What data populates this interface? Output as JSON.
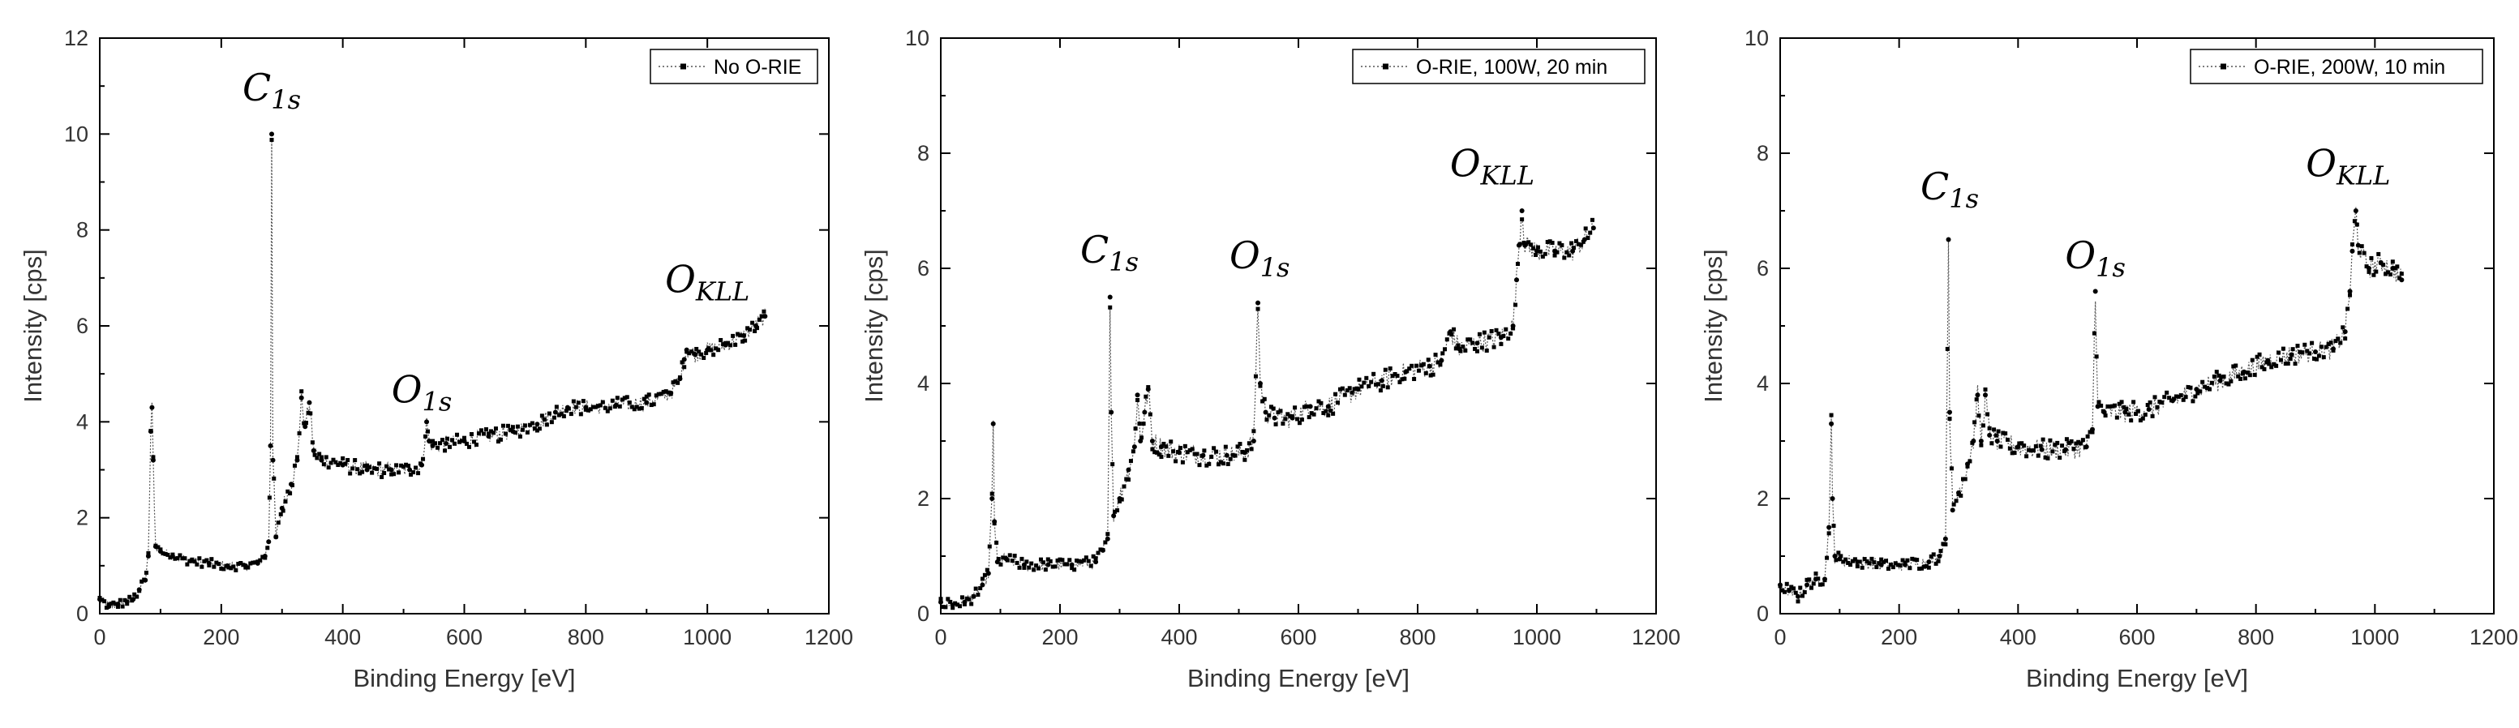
{
  "figure": {
    "description_panels": 3
  },
  "chart_data": [
    {
      "type": "scatter",
      "title": "",
      "xlabel": "Binding Energy [eV]",
      "ylabel": "Intensity [cps]",
      "xlim": [
        0,
        1200
      ],
      "ylim": [
        0,
        12
      ],
      "xticks": [
        0,
        200,
        400,
        600,
        800,
        1000,
        1200
      ],
      "yticks": [
        0,
        2,
        4,
        6,
        8,
        10,
        12
      ],
      "xtick_labels": [
        "0",
        "200",
        "400",
        "600",
        "800",
        "1000",
        "1200"
      ],
      "ytick_labels": [
        "0",
        "2",
        "4",
        "6",
        "8",
        "10",
        "12"
      ],
      "legend": "No O-RIE",
      "legend_position": "top-right",
      "x_end": 1095,
      "series": [
        {
          "name": "No O-RIE",
          "points": [
            [
              0,
              0.3
            ],
            [
              15,
              0.15
            ],
            [
              30,
              0.2
            ],
            [
              45,
              0.25
            ],
            [
              55,
              0.3
            ],
            [
              65,
              0.5
            ],
            [
              75,
              0.7
            ],
            [
              80,
              1.2
            ],
            [
              84,
              3.8
            ],
            [
              86,
              4.3
            ],
            [
              88,
              3.2
            ],
            [
              92,
              1.4
            ],
            [
              100,
              1.3
            ],
            [
              120,
              1.2
            ],
            [
              150,
              1.1
            ],
            [
              180,
              1.05
            ],
            [
              210,
              1.0
            ],
            [
              240,
              1.0
            ],
            [
              260,
              1.05
            ],
            [
              272,
              1.2
            ],
            [
              278,
              1.5
            ],
            [
              281,
              3.5
            ],
            [
              283,
              10.0
            ],
            [
              285,
              3.2
            ],
            [
              290,
              1.6
            ],
            [
              300,
              2.2
            ],
            [
              315,
              2.7
            ],
            [
              325,
              3.2
            ],
            [
              332,
              4.5
            ],
            [
              338,
              3.9
            ],
            [
              345,
              4.4
            ],
            [
              352,
              3.4
            ],
            [
              365,
              3.2
            ],
            [
              400,
              3.1
            ],
            [
              440,
              3.0
            ],
            [
              480,
              3.0
            ],
            [
              510,
              3.0
            ],
            [
              530,
              3.1
            ],
            [
              538,
              4.0
            ],
            [
              542,
              3.6
            ],
            [
              548,
              3.5
            ],
            [
              570,
              3.55
            ],
            [
              600,
              3.6
            ],
            [
              640,
              3.7
            ],
            [
              680,
              3.8
            ],
            [
              720,
              3.95
            ],
            [
              750,
              4.2
            ],
            [
              770,
              4.3
            ],
            [
              800,
              4.3
            ],
            [
              850,
              4.35
            ],
            [
              900,
              4.4
            ],
            [
              940,
              4.6
            ],
            [
              955,
              4.9
            ],
            [
              962,
              5.3
            ],
            [
              966,
              5.5
            ],
            [
              980,
              5.4
            ],
            [
              1000,
              5.5
            ],
            [
              1030,
              5.6
            ],
            [
              1060,
              5.8
            ],
            [
              1080,
              6.0
            ],
            [
              1095,
              6.2
            ]
          ],
          "noise": 0.16
        }
      ],
      "annotations": [
        {
          "base": "C",
          "sub": "1s",
          "x": 283,
          "y": 10.7
        },
        {
          "base": "O",
          "sub": "1s",
          "x": 530,
          "y": 4.4
        },
        {
          "base": "O",
          "sub": "KLL",
          "x": 1000,
          "y": 6.7
        }
      ]
    },
    {
      "type": "scatter",
      "title": "",
      "xlabel": "Binding Energy [eV]",
      "ylabel": "Intensity [cps]",
      "xlim": [
        0,
        1200
      ],
      "ylim": [
        0,
        10
      ],
      "xticks": [
        0,
        200,
        400,
        600,
        800,
        1000,
        1200
      ],
      "yticks": [
        0,
        2,
        4,
        6,
        8,
        10
      ],
      "xtick_labels": [
        "0",
        "200",
        "400",
        "600",
        "800",
        "1000",
        "1200"
      ],
      "ytick_labels": [
        "0",
        "2",
        "4",
        "6",
        "8",
        "10"
      ],
      "legend": "O-RIE, 100W, 20 min",
      "legend_position": "top-right",
      "x_end": 1095,
      "series": [
        {
          "name": "O-RIE, 100W, 20 min",
          "points": [
            [
              0,
              0.2
            ],
            [
              20,
              0.15
            ],
            [
              40,
              0.2
            ],
            [
              55,
              0.3
            ],
            [
              70,
              0.5
            ],
            [
              80,
              0.7
            ],
            [
              86,
              2.0
            ],
            [
              88,
              3.3
            ],
            [
              90,
              1.6
            ],
            [
              95,
              0.9
            ],
            [
              110,
              0.95
            ],
            [
              140,
              0.85
            ],
            [
              180,
              0.85
            ],
            [
              220,
              0.85
            ],
            [
              260,
              0.9
            ],
            [
              272,
              1.1
            ],
            [
              280,
              1.3
            ],
            [
              284,
              5.5
            ],
            [
              286,
              3.5
            ],
            [
              290,
              1.7
            ],
            [
              300,
              2.0
            ],
            [
              315,
              2.5
            ],
            [
              325,
              2.9
            ],
            [
              330,
              3.8
            ],
            [
              335,
              3.0
            ],
            [
              342,
              3.5
            ],
            [
              348,
              3.9
            ],
            [
              355,
              3.0
            ],
            [
              370,
              2.9
            ],
            [
              400,
              2.8
            ],
            [
              440,
              2.75
            ],
            [
              480,
              2.75
            ],
            [
              510,
              2.8
            ],
            [
              525,
              3.0
            ],
            [
              532,
              5.4
            ],
            [
              536,
              4.0
            ],
            [
              545,
              3.5
            ],
            [
              560,
              3.4
            ],
            [
              590,
              3.4
            ],
            [
              620,
              3.6
            ],
            [
              650,
              3.6
            ],
            [
              700,
              3.9
            ],
            [
              740,
              4.05
            ],
            [
              780,
              4.2
            ],
            [
              820,
              4.3
            ],
            [
              840,
              4.4
            ],
            [
              855,
              4.9
            ],
            [
              870,
              4.6
            ],
            [
              900,
              4.7
            ],
            [
              940,
              4.8
            ],
            [
              960,
              5.0
            ],
            [
              966,
              5.8
            ],
            [
              970,
              6.4
            ],
            [
              975,
              7.0
            ],
            [
              980,
              6.4
            ],
            [
              1000,
              6.3
            ],
            [
              1030,
              6.3
            ],
            [
              1060,
              6.3
            ],
            [
              1080,
              6.5
            ],
            [
              1095,
              6.7
            ]
          ],
          "noise": 0.18
        }
      ],
      "annotations": [
        {
          "base": "C",
          "sub": "1s",
          "x": 283,
          "y": 6.1
        },
        {
          "base": "O",
          "sub": "1s",
          "x": 535,
          "y": 6.0
        },
        {
          "base": "O",
          "sub": "KLL",
          "x": 925,
          "y": 7.6
        }
      ]
    },
    {
      "type": "scatter",
      "title": "",
      "xlabel": "Binding Energy [eV]",
      "ylabel": "Intensity [cps]",
      "xlim": [
        0,
        1200
      ],
      "ylim": [
        0,
        10
      ],
      "xticks": [
        0,
        200,
        400,
        600,
        800,
        1000,
        1200
      ],
      "yticks": [
        0,
        2,
        4,
        6,
        8,
        10
      ],
      "xtick_labels": [
        "0",
        "200",
        "400",
        "600",
        "800",
        "1000",
        "1200"
      ],
      "ytick_labels": [
        "0",
        "2",
        "4",
        "6",
        "8",
        "10"
      ],
      "legend": "O-RIE, 200W, 10 min",
      "legend_position": "top-right",
      "x_end": 1045,
      "series": [
        {
          "name": "O-RIE, 200W, 10 min",
          "points": [
            [
              0,
              0.5
            ],
            [
              15,
              0.4
            ],
            [
              30,
              0.3
            ],
            [
              45,
              0.5
            ],
            [
              60,
              0.6
            ],
            [
              75,
              0.6
            ],
            [
              82,
              1.5
            ],
            [
              86,
              3.3
            ],
            [
              88,
              2.0
            ],
            [
              92,
              1.0
            ],
            [
              100,
              0.95
            ],
            [
              130,
              0.9
            ],
            [
              170,
              0.85
            ],
            [
              210,
              0.85
            ],
            [
              250,
              0.9
            ],
            [
              268,
              1.0
            ],
            [
              278,
              1.3
            ],
            [
              283,
              6.5
            ],
            [
              285,
              3.5
            ],
            [
              290,
              1.8
            ],
            [
              300,
              2.1
            ],
            [
              315,
              2.6
            ],
            [
              325,
              3.0
            ],
            [
              332,
              3.8
            ],
            [
              338,
              3.0
            ],
            [
              345,
              3.8
            ],
            [
              352,
              3.1
            ],
            [
              365,
              3.0
            ],
            [
              400,
              2.9
            ],
            [
              440,
              2.85
            ],
            [
              480,
              2.85
            ],
            [
              515,
              2.9
            ],
            [
              525,
              3.2
            ],
            [
              530,
              5.6
            ],
            [
              534,
              3.6
            ],
            [
              545,
              3.5
            ],
            [
              580,
              3.5
            ],
            [
              620,
              3.55
            ],
            [
              660,
              3.7
            ],
            [
              700,
              3.9
            ],
            [
              740,
              4.05
            ],
            [
              780,
              4.2
            ],
            [
              820,
              4.4
            ],
            [
              860,
              4.5
            ],
            [
              900,
              4.55
            ],
            [
              930,
              4.6
            ],
            [
              950,
              4.9
            ],
            [
              958,
              5.6
            ],
            [
              962,
              6.3
            ],
            [
              968,
              7.0
            ],
            [
              972,
              6.4
            ],
            [
              990,
              6.0
            ],
            [
              1010,
              6.1
            ],
            [
              1030,
              6.0
            ],
            [
              1045,
              5.8
            ]
          ],
          "noise": 0.18
        }
      ],
      "annotations": [
        {
          "base": "C",
          "sub": "1s",
          "x": 285,
          "y": 7.2
        },
        {
          "base": "O",
          "sub": "1s",
          "x": 530,
          "y": 6.0
        },
        {
          "base": "O",
          "sub": "KLL",
          "x": 955,
          "y": 7.6
        }
      ]
    }
  ]
}
